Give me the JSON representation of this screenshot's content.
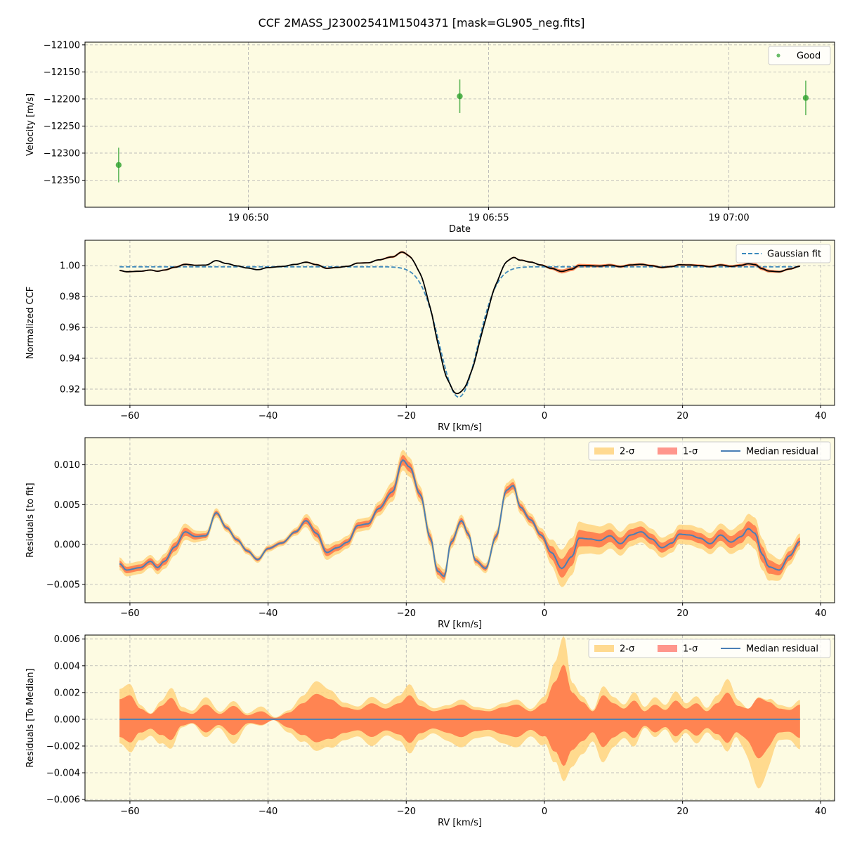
{
  "figure_title": "CCF 2MASS_J23002541M1504371 [mask=GL905_neg.fits]",
  "colors": {
    "background": "#fdfbe2",
    "good": "#2ca02c",
    "fit": "#1f77b4",
    "ccf": "#000000",
    "sigma2": "#ffd47f",
    "sigma1": "#ff7f4f",
    "median": "#4a7fb5"
  },
  "chart_data": [
    {
      "type": "scatter",
      "ylabel": "Velocity [m/s]",
      "xlabel": "Date",
      "xlim_minutes": [
        46.6,
        62.2
      ],
      "ylim": [
        -12400,
        -12095
      ],
      "xticks": [
        {
          "v": 50,
          "label": "19 06:50"
        },
        {
          "v": 55,
          "label": "19 06:55"
        },
        {
          "v": 60,
          "label": "19 07:00"
        }
      ],
      "yticks": [
        -12100,
        -12150,
        -12200,
        -12250,
        -12300,
        -12350
      ],
      "legend": [
        {
          "label": "Good"
        }
      ],
      "legend_loc": "upper right",
      "points": [
        {
          "x": 47.3,
          "y": -12322,
          "err": 32
        },
        {
          "x": 54.4,
          "y": -12195,
          "err": 31
        },
        {
          "x": 61.6,
          "y": -12198,
          "err": 32
        }
      ]
    },
    {
      "type": "line",
      "xlabel": "RV [km/s]",
      "ylabel": "Normalized CCF",
      "xlim": [
        -66.5,
        42
      ],
      "ylim": [
        0.9095,
        1.0165
      ],
      "xticks": [
        -60,
        -40,
        -20,
        0,
        20,
        40
      ],
      "yticks": [
        0.92,
        0.94,
        0.96,
        0.98,
        1.0
      ],
      "ytick_labels": [
        "0.92",
        "0.94",
        "0.96",
        "0.98",
        "1.00"
      ],
      "legend": [
        {
          "label": "Gaussian fit"
        }
      ],
      "legend_loc": "upper right",
      "gaussian": {
        "center": -12.4,
        "sigma": 2.75,
        "depth": 0.0845,
        "continuum": 0.9993
      },
      "x_range": [
        -61.5,
        37
      ]
    },
    {
      "type": "area",
      "xlabel": "RV [km/s]",
      "ylabel": "Residuals [to fit]",
      "xlim": [
        -66.5,
        42
      ],
      "ylim": [
        -0.0073,
        0.0134
      ],
      "xticks": [
        -60,
        -40,
        -20,
        0,
        20,
        40
      ],
      "yticks": [
        -0.005,
        0.0,
        0.005,
        0.01
      ],
      "ytick_labels": [
        "−0.005",
        "0.000",
        "0.005",
        "0.010"
      ],
      "legend": [
        {
          "label": "2-σ"
        },
        {
          "label": "1-σ"
        },
        {
          "label": "Median residual"
        }
      ],
      "legend_loc": "upper right",
      "knots": [
        [
          -61.5,
          -0.0024
        ],
        [
          -60.5,
          -0.0032
        ],
        [
          -58.5,
          -0.0029
        ],
        [
          -57,
          -0.0021
        ],
        [
          -56,
          -0.0029
        ],
        [
          -55,
          -0.0021
        ],
        [
          -53.5,
          -0.0003
        ],
        [
          -52,
          0.0016
        ],
        [
          -50.5,
          0.001
        ],
        [
          -49,
          0.0011
        ],
        [
          -47.5,
          0.004
        ],
        [
          -46,
          0.0021
        ],
        [
          -44.5,
          0.0006
        ],
        [
          -43,
          -0.0008
        ],
        [
          -41.5,
          -0.0019
        ],
        [
          -40,
          -0.0005
        ],
        [
          -38,
          0.0002
        ],
        [
          -36,
          0.0016
        ],
        [
          -34.5,
          0.003
        ],
        [
          -33,
          0.0014
        ],
        [
          -31.5,
          -0.001
        ],
        [
          -30,
          -0.0004
        ],
        [
          -28.5,
          0.0003
        ],
        [
          -27,
          0.0024
        ],
        [
          -25.5,
          0.0026
        ],
        [
          -24,
          0.0045
        ],
        [
          -22,
          0.0066
        ],
        [
          -20.5,
          0.0106
        ],
        [
          -19.5,
          0.0097
        ],
        [
          -18,
          0.0063
        ],
        [
          -16.5,
          0.0008
        ],
        [
          -15.5,
          -0.0033
        ],
        [
          -14.5,
          -0.004
        ],
        [
          -13.5,
          0.0003
        ],
        [
          -12,
          0.003
        ],
        [
          -11,
          0.0013
        ],
        [
          -10,
          -0.002
        ],
        [
          -8.5,
          -0.003
        ],
        [
          -7,
          0.001
        ],
        [
          -5.5,
          0.0068
        ],
        [
          -4.5,
          0.0074
        ],
        [
          -3.5,
          0.0047
        ],
        [
          -2,
          0.0031
        ],
        [
          -0.5,
          0.0012
        ],
        [
          1,
          -0.001
        ],
        [
          2.5,
          -0.003
        ],
        [
          4,
          -0.0015
        ],
        [
          5,
          0.0008
        ],
        [
          6.5,
          0.0007
        ],
        [
          8,
          0.0005
        ],
        [
          9.5,
          0.0011
        ],
        [
          11,
          0.0001
        ],
        [
          12.5,
          0.0012
        ],
        [
          14,
          0.0016
        ],
        [
          15.5,
          0.0007
        ],
        [
          17,
          -0.0004
        ],
        [
          18.5,
          0.0002
        ],
        [
          19.5,
          0.0013
        ],
        [
          21,
          0.0012
        ],
        [
          22.5,
          0.0008
        ],
        [
          24,
          0.0001
        ],
        [
          25.5,
          0.0012
        ],
        [
          27,
          0.0003
        ],
        [
          28.5,
          0.001
        ],
        [
          29.5,
          0.002
        ],
        [
          30.5,
          0.0014
        ],
        [
          31.5,
          -0.0012
        ],
        [
          32.5,
          -0.0028
        ],
        [
          34,
          -0.0032
        ],
        [
          35.5,
          -0.0014
        ],
        [
          37,
          0.0004
        ]
      ],
      "sigma_knots": [
        [
          -61.5,
          0.0008
        ],
        [
          -57,
          0.0008
        ],
        [
          -53,
          0.0011
        ],
        [
          -49,
          0.0006
        ],
        [
          -45,
          0.0005
        ],
        [
          -41,
          0.0004
        ],
        [
          -37,
          0.0004
        ],
        [
          -33,
          0.001
        ],
        [
          -29,
          0.0008
        ],
        [
          -25,
          0.0008
        ],
        [
          -21,
          0.0013
        ],
        [
          -17,
          0.001
        ],
        [
          -13,
          0.0008
        ],
        [
          -9,
          0.0006
        ],
        [
          -5,
          0.0009
        ],
        [
          -1,
          0.0008
        ],
        [
          3,
          0.0024
        ],
        [
          7,
          0.0018
        ],
        [
          11,
          0.0015
        ],
        [
          15,
          0.0013
        ],
        [
          19,
          0.0012
        ],
        [
          23,
          0.0013
        ],
        [
          27,
          0.0015
        ],
        [
          31,
          0.002
        ],
        [
          35,
          0.0012
        ],
        [
          37,
          0.001
        ]
      ]
    },
    {
      "type": "area",
      "xlabel": "RV [km/s]",
      "ylabel": "Residuals [To Median]",
      "xlim": [
        -66.5,
        42
      ],
      "ylim": [
        -0.0061,
        0.0063
      ],
      "xticks": [
        -60,
        -40,
        -20,
        0,
        20,
        40
      ],
      "yticks": [
        -0.006,
        -0.004,
        -0.002,
        0.0,
        0.002,
        0.004,
        0.006
      ],
      "ytick_labels": [
        "−0.006",
        "−0.004",
        "−0.002",
        "0.000",
        "0.002",
        "0.004",
        "0.006"
      ],
      "legend": [
        {
          "label": "2-σ"
        },
        {
          "label": "1-σ"
        },
        {
          "label": "Median residual"
        }
      ],
      "legend_loc": "upper right",
      "envelope": [
        [
          -61.5,
          0.0015
        ],
        [
          -60,
          0.0018
        ],
        [
          -58.5,
          0.0008
        ],
        [
          -57,
          0.0004
        ],
        [
          -55.5,
          0.001
        ],
        [
          -54,
          0.0016
        ],
        [
          -52.5,
          0.0006
        ],
        [
          -51,
          0.0004
        ],
        [
          -49,
          0.0011
        ],
        [
          -47,
          0.0004
        ],
        [
          -45,
          0.001
        ],
        [
          -43,
          0.0003
        ],
        [
          -41,
          0.0006
        ],
        [
          -39,
          0.0001
        ],
        [
          -37,
          0.0005
        ],
        [
          -35,
          0.0012
        ],
        [
          -33,
          0.0019
        ],
        [
          -31,
          0.0015
        ],
        [
          -29,
          0.0009
        ],
        [
          -27,
          0.0007
        ],
        [
          -25,
          0.0012
        ],
        [
          -23,
          0.0008
        ],
        [
          -21,
          0.0012
        ],
        [
          -19.5,
          0.0018
        ],
        [
          -18,
          0.001
        ],
        [
          -16,
          0.0006
        ],
        [
          -14,
          0.0008
        ],
        [
          -12,
          0.0011
        ],
        [
          -10,
          0.0007
        ],
        [
          -8,
          0.0006
        ],
        [
          -6,
          0.0009
        ],
        [
          -4,
          0.0011
        ],
        [
          -2,
          0.0006
        ],
        [
          0,
          0.0012
        ],
        [
          1.5,
          0.0028
        ],
        [
          2.8,
          0.0041
        ],
        [
          4,
          0.002
        ],
        [
          5.5,
          0.0013
        ],
        [
          7,
          0.0006
        ],
        [
          8.5,
          0.0018
        ],
        [
          10,
          0.0012
        ],
        [
          11.5,
          0.0008
        ],
        [
          13,
          0.0014
        ],
        [
          14.5,
          0.0006
        ],
        [
          16,
          0.0011
        ],
        [
          17.5,
          0.0007
        ],
        [
          19,
          0.0014
        ],
        [
          20.5,
          0.0008
        ],
        [
          22,
          0.0012
        ],
        [
          23.5,
          0.0006
        ],
        [
          25,
          0.0012
        ],
        [
          26.5,
          0.002
        ],
        [
          28,
          0.001
        ],
        [
          29.5,
          0.0008
        ],
        [
          31,
          0.0016
        ],
        [
          32.5,
          0.0013
        ],
        [
          34,
          0.0008
        ],
        [
          35.5,
          0.0007
        ],
        [
          37,
          0.0011
        ]
      ],
      "asym": [
        [
          -61.5,
          0.0003
        ],
        [
          -57,
          -0.0005
        ],
        [
          -53,
          0.0002
        ],
        [
          -49,
          0.0002
        ],
        [
          -45,
          -0.0003
        ],
        [
          -41,
          0.0003
        ],
        [
          -37,
          -0.0002
        ],
        [
          -33,
          0.0003
        ],
        [
          -29,
          -0.0002
        ],
        [
          -25,
          -0.0002
        ],
        [
          -21,
          0.0001
        ],
        [
          -17,
          -0.0001
        ],
        [
          -13,
          -0.0004
        ],
        [
          -9,
          -0.0003
        ],
        [
          -5,
          -0.0004
        ],
        [
          -1,
          -0.0003
        ],
        [
          2.8,
          0.001
        ],
        [
          4,
          -0.0005
        ],
        [
          7,
          -0.0006
        ],
        [
          11,
          -0.0002
        ],
        [
          15,
          0.0002
        ],
        [
          19,
          0.0002
        ],
        [
          23,
          -0.0001
        ],
        [
          27,
          0.0004
        ],
        [
          31,
          -0.0022
        ],
        [
          34,
          -0.0003
        ],
        [
          37,
          -0.0005
        ]
      ]
    }
  ]
}
